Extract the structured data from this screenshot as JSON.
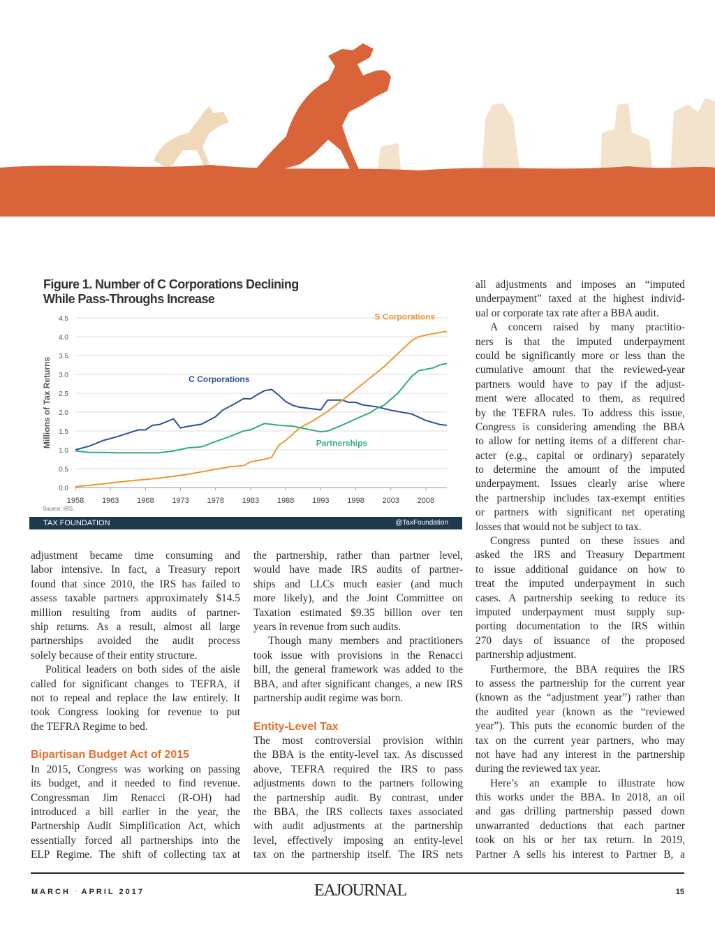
{
  "figure": {
    "title_line1": "Figure 1. Number of C Corporations Declining",
    "title_line2": "While Pass-Throughs Increase",
    "source": "Source: IRS.",
    "brand_left": "TAX FOUNDATION",
    "brand_right": "@TaxFoundation"
  },
  "chart_data": {
    "type": "line",
    "title": "Figure 1. Number of C Corporations Declining While Pass-Throughs Increase",
    "xlabel": "",
    "ylabel": "Millions of Tax Returns",
    "xlim": [
      1958,
      2011
    ],
    "ylim": [
      0,
      4.5
    ],
    "xticks": [
      "1958",
      "1963",
      "1968",
      "1973",
      "1978",
      "1983",
      "1988",
      "1993",
      "1998",
      "2003",
      "2008"
    ],
    "yticks": [
      "0.0",
      "0.5",
      "1.0",
      "1.5",
      "2.0",
      "2.5",
      "3.0",
      "3.5",
      "4.0",
      "4.5"
    ],
    "grid": true,
    "series": [
      {
        "name": "C Corporations",
        "color": "#2b4f9a",
        "x": [
          1958,
          1960,
          1962,
          1964,
          1966,
          1967,
          1968,
          1969,
          1970,
          1972,
          1973,
          1974,
          1976,
          1978,
          1979,
          1981,
          1982,
          1983,
          1984,
          1985,
          1986,
          1987,
          1988,
          1989,
          1990,
          1993,
          1994,
          1996,
          1997,
          1998,
          1999,
          2001,
          2003,
          2006,
          2008,
          2010,
          2011
        ],
        "y": [
          1.0,
          1.1,
          1.25,
          1.35,
          1.47,
          1.53,
          1.53,
          1.65,
          1.67,
          1.82,
          1.58,
          1.62,
          1.68,
          1.88,
          2.05,
          2.25,
          2.36,
          2.35,
          2.47,
          2.57,
          2.6,
          2.45,
          2.28,
          2.18,
          2.13,
          2.06,
          2.32,
          2.32,
          2.26,
          2.26,
          2.19,
          2.14,
          2.05,
          1.95,
          1.78,
          1.67,
          1.65
        ]
      },
      {
        "name": "S Corporations",
        "color": "#f0962e",
        "x": [
          1958,
          1962,
          1966,
          1970,
          1974,
          1977,
          1980,
          1982,
          1983,
          1985,
          1986,
          1987,
          1988,
          1990,
          1992,
          1994,
          1996,
          1998,
          2000,
          2002,
          2004,
          2006,
          2007,
          2009,
          2011
        ],
        "y": [
          0.02,
          0.1,
          0.18,
          0.25,
          0.35,
          0.45,
          0.55,
          0.58,
          0.68,
          0.75,
          0.8,
          1.12,
          1.25,
          1.58,
          1.78,
          2.02,
          2.3,
          2.6,
          2.9,
          3.2,
          3.55,
          3.9,
          4.0,
          4.08,
          4.14
        ]
      },
      {
        "name": "Partnerships",
        "color": "#2eae78",
        "x": [
          1958,
          1960,
          1962,
          1964,
          1970,
          1972,
          1974,
          1976,
          1978,
          1980,
          1982,
          1983,
          1985,
          1987,
          1989,
          1991,
          1993,
          1994,
          1996,
          1998,
          2000,
          2001,
          2002,
          2004,
          2006,
          2007,
          2009,
          2010,
          2011
        ],
        "y": [
          0.97,
          0.93,
          0.93,
          0.92,
          0.92,
          0.97,
          1.05,
          1.08,
          1.22,
          1.35,
          1.5,
          1.53,
          1.7,
          1.65,
          1.63,
          1.55,
          1.48,
          1.5,
          1.65,
          1.82,
          1.98,
          2.1,
          2.18,
          2.5,
          2.95,
          3.1,
          3.17,
          3.25,
          3.29
        ]
      }
    ]
  },
  "columns": [
    [
      {
        "lines": [
          "adjustment became time consuming and",
          "labor intensive. In fact, a Treasury report",
          "found that since 2010, the IRS has failed to",
          "assess taxable partners approximately $14.5",
          "million resulting from audits of partner-",
          "ship returns. As a result, almost all large",
          "partnerships avoided the audit process",
          "solely because of their entity structure."
        ]
      },
      {
        "indent": true,
        "lines": [
          "Political leaders on both sides of the aisle",
          "called for significant changes to TEFRA, if",
          "not to repeal and replace the law entirely. It",
          "took Congress looking for revenue to put",
          "the TEFRA Regime to bed."
        ]
      },
      {
        "spacer": true
      },
      {
        "heading": "Bipartisan Budget Act of 2015"
      },
      {
        "lines": [
          "In 2015, Congress was working on passing",
          "its budget, and it needed to find revenue.",
          "Congressman Jim Renacci (R-OH) had",
          "introduced a bill earlier in the year, the",
          "Partnership Audit Simplification Act, which",
          "essentially forced all partnerships into the",
          "ELP Regime. The shift of collecting tax at"
        ],
        "continues": true
      }
    ],
    [
      {
        "lines": [
          "the partnership, rather than partner level,",
          "would have made IRS audits of partner-",
          "ships and LLCs much easier (and much",
          "more likely), and the Joint Committee on",
          "Taxation estimated $9.35 billion over ten",
          "years in revenue from such audits."
        ]
      },
      {
        "indent": true,
        "lines": [
          "Though many members and practitioners",
          "took issue with provisions in the Renacci",
          "bill, the general framework was added to the",
          "BBA, and after significant changes, a new IRS",
          "partnership audit regime was born."
        ]
      },
      {
        "spacer": true
      },
      {
        "heading": "Entity-Level Tax"
      },
      {
        "lines": [
          "The most controversial provision within",
          "the BBA is the entity-level tax. As discussed",
          "above, TEFRA required the IRS to pass",
          "adjustments down to the partners following",
          "the partnership audit. By contrast, under",
          "the BBA, the IRS collects taxes associated",
          "with audit adjustments at the partnership",
          "level, effectively imposing an entity-level",
          "tax on the partnership itself. The IRS nets"
        ],
        "continues": true
      }
    ],
    [
      {
        "lines": [
          "all adjustments and imposes an “imputed",
          "underpayment” taxed at the highest individ-",
          "ual or corporate tax rate after a BBA audit."
        ]
      },
      {
        "indent": true,
        "lines": [
          "A concern raised by many practitio-",
          "ners is that the imputed underpayment",
          "could be significantly more or less than the",
          "cumulative amount that the reviewed-year",
          "partners would have to pay if the adjust-",
          "ment were allocated to them, as required",
          "by the TEFRA rules. To address this issue,",
          "Congress is considering amending the BBA",
          "to allow for netting items of a different char-",
          "acter (e.g., capital or ordinary) separately",
          "to determine the amount of the imputed",
          "underpayment. Issues clearly arise where",
          "the partnership includes tax-exempt entities",
          "or partners with significant net operating",
          "losses that would not be subject to tax."
        ]
      },
      {
        "indent": true,
        "lines": [
          "Congress punted on these issues and",
          "asked the IRS and Treasury Department",
          "to issue additional guidance on how to",
          "treat the imputed underpayment in such",
          "cases. A partnership seeking to reduce its",
          "imputed underpayment must supply sup-",
          "porting documentation to the IRS within",
          "270 days of issuance of the proposed",
          "partnership adjustment."
        ]
      },
      {
        "indent": true,
        "lines": [
          "Furthermore, the BBA requires the IRS",
          "to assess the partnership for the current year",
          "(known as the “adjustment year”) rather than",
          "the audited year (known as the “reviewed",
          "year”). This puts the economic burden of the",
          "tax on the current year partners, who may",
          "not have had any interest in the partnership",
          "during the reviewed tax year."
        ]
      },
      {
        "indent": true,
        "lines": [
          "Here’s an example to illustrate how",
          "this works under the BBA. In 2018, an oil",
          "and gas drilling partnership passed down",
          "unwarranted deductions that each partner",
          "took on his or her tax return. In 2019,",
          "Partner A sells his interest to Partner B, a"
        ],
        "continues": true
      }
    ]
  ],
  "footer": {
    "month_start": "March",
    "month_end": "April 2017",
    "logo": "EAJOURNAL",
    "page_number": "15"
  },
  "colors": {
    "accent": "#e07030",
    "hero": "#d9643a",
    "navy": "#1e3a4c"
  }
}
